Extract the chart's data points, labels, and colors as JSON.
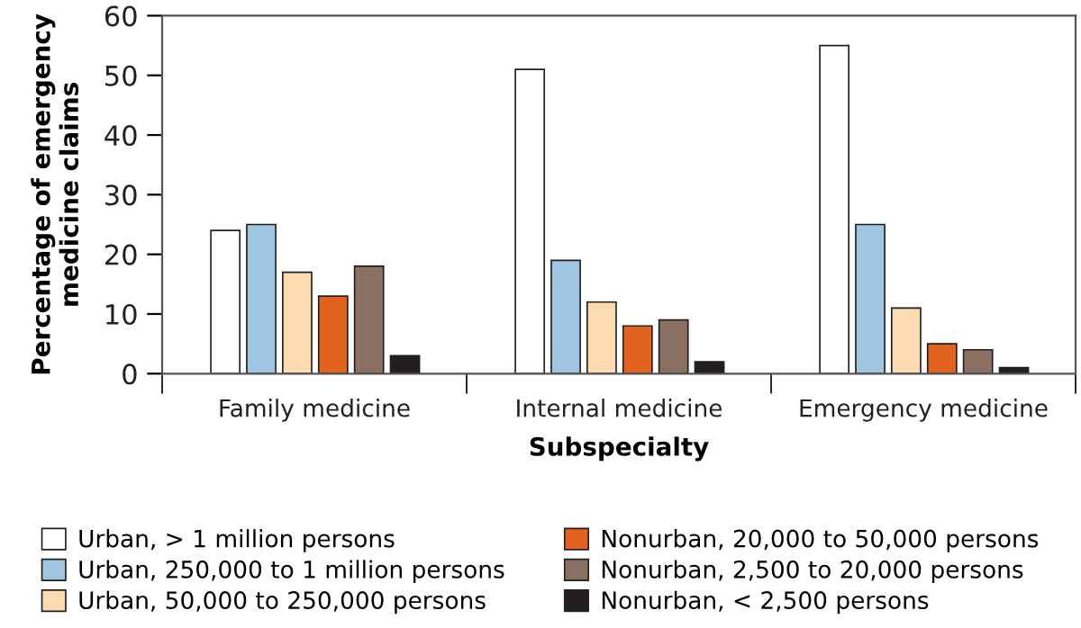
{
  "chart_data": {
    "type": "bar",
    "xlabel": "Subspecialty",
    "ylabel": "Percentage of emergency\nmedicine claims",
    "categories": [
      "Family medicine",
      "Internal medicine",
      "Emergency medicine"
    ],
    "series": [
      {
        "name": "Urban, > 1 million persons",
        "color": "#ffffff",
        "values": [
          24,
          51,
          55
        ]
      },
      {
        "name": "Urban, 250,000 to 1 million persons",
        "color": "#9fc5e0",
        "values": [
          25,
          19,
          25
        ]
      },
      {
        "name": "Urban, 50,000 to 250,000 persons",
        "color": "#fddbb0",
        "values": [
          17,
          12,
          11
        ]
      },
      {
        "name": "Nonurban, 20,000 to 50,000 persons",
        "color": "#e2621f",
        "values": [
          13,
          8,
          5
        ]
      },
      {
        "name": "Nonurban, 2,500 to 20,000 persons",
        "color": "#8b7163",
        "values": [
          18,
          9,
          4
        ]
      },
      {
        "name": "Nonurban, < 2,500 persons",
        "color": "#231f20",
        "values": [
          3,
          2,
          1
        ]
      }
    ],
    "ylim": [
      0,
      60
    ],
    "yticks": [
      0,
      10,
      20,
      30,
      40,
      50,
      60
    ],
    "grid": false,
    "legend": "bottom"
  }
}
